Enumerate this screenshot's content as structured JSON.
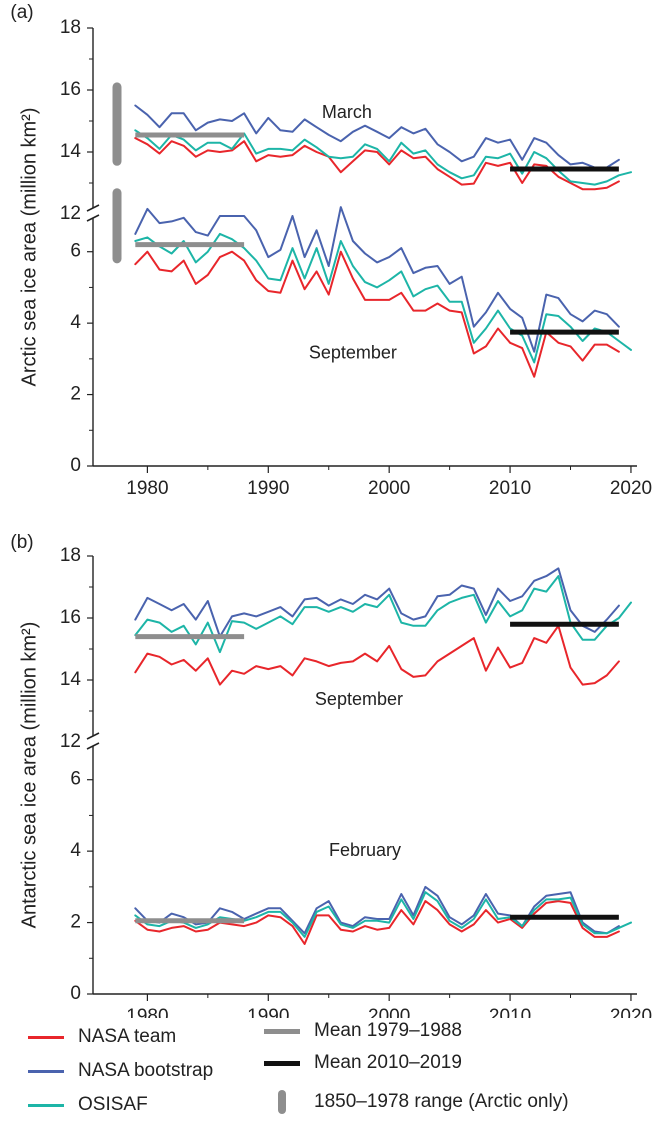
{
  "chart_data": [
    {
      "type": "line",
      "panel_label": "(a)",
      "ylabel": "Arctic sea ice area (million km²)",
      "x_ticks": [
        1980,
        1990,
        2000,
        2010,
        2020
      ],
      "y_ticks_upper": [
        12,
        14,
        16,
        18
      ],
      "y_ticks_lower": [
        0,
        2,
        4,
        6
      ],
      "broken_axis": true,
      "upper_ylim": [
        12,
        18
      ],
      "lower_ylim": [
        0,
        7
      ],
      "xlim": [
        1975.5,
        2020.5
      ],
      "x": [
        1979,
        1980,
        1981,
        1982,
        1983,
        1984,
        1985,
        1986,
        1987,
        1988,
        1989,
        1990,
        1991,
        1992,
        1993,
        1994,
        1995,
        1996,
        1997,
        1998,
        1999,
        2000,
        2001,
        2002,
        2003,
        2004,
        2005,
        2006,
        2007,
        2008,
        2009,
        2010,
        2011,
        2012,
        2013,
        2014,
        2015,
        2016,
        2017,
        2018,
        2019,
        2020
      ],
      "groups": [
        {
          "label": "March",
          "series": [
            {
              "name": "NASA team",
              "values": [
                14.45,
                14.25,
                13.95,
                14.35,
                14.2,
                13.85,
                14.05,
                14.0,
                14.05,
                14.35,
                13.7,
                13.9,
                13.85,
                13.9,
                14.2,
                14.0,
                13.85,
                13.35,
                13.7,
                14.05,
                14.0,
                13.6,
                14.05,
                13.8,
                13.85,
                13.45,
                13.2,
                12.95,
                12.98,
                13.65,
                13.55,
                13.65,
                13.0,
                13.6,
                13.55,
                13.2,
                13.0,
                12.8,
                12.8,
                12.85,
                13.05,
                null
              ]
            },
            {
              "name": "NASA bootstrap",
              "values": [
                15.5,
                15.2,
                14.8,
                15.25,
                15.25,
                14.7,
                14.95,
                15.05,
                15.0,
                15.25,
                14.6,
                15.1,
                14.7,
                14.65,
                15.05,
                14.8,
                14.55,
                14.35,
                14.65,
                14.85,
                14.65,
                14.45,
                14.8,
                14.6,
                14.75,
                14.25,
                14.0,
                13.7,
                13.85,
                14.45,
                14.3,
                14.4,
                13.75,
                14.45,
                14.3,
                13.9,
                13.6,
                13.65,
                13.5,
                13.5,
                13.75,
                null
              ]
            },
            {
              "name": "OSISAF",
              "values": [
                14.7,
                14.45,
                14.1,
                14.55,
                14.4,
                14.05,
                14.3,
                14.3,
                14.1,
                14.6,
                13.95,
                14.1,
                14.1,
                14.05,
                14.4,
                14.15,
                13.85,
                13.8,
                13.85,
                14.25,
                14.1,
                13.7,
                14.3,
                13.95,
                14.05,
                13.6,
                13.35,
                13.15,
                13.25,
                13.85,
                13.8,
                13.95,
                13.3,
                14.0,
                13.8,
                13.4,
                13.05,
                13.0,
                12.95,
                13.05,
                13.25,
                13.35
              ]
            }
          ],
          "mean_1979_1988": 14.55,
          "mean_2010_2019": 13.45,
          "historic_range_1850_1978": [
            13.7,
            16.1
          ]
        },
        {
          "label": "September",
          "series": [
            {
              "name": "NASA team",
              "values": [
                5.65,
                6.0,
                5.5,
                5.45,
                5.75,
                5.1,
                5.35,
                5.85,
                6.0,
                5.75,
                5.2,
                4.9,
                4.85,
                5.75,
                4.95,
                5.45,
                4.8,
                6.0,
                5.25,
                4.65,
                4.65,
                4.65,
                4.85,
                4.35,
                4.35,
                4.55,
                4.35,
                4.3,
                3.15,
                3.35,
                3.85,
                3.45,
                3.3,
                2.5,
                3.75,
                3.45,
                3.35,
                2.95,
                3.4,
                3.4,
                3.2,
                null
              ]
            },
            {
              "name": "NASA bootstrap",
              "values": [
                6.5,
                7.2,
                6.8,
                6.85,
                6.95,
                6.55,
                6.45,
                7.0,
                7.0,
                7.0,
                6.6,
                5.85,
                6.05,
                7.0,
                5.85,
                6.6,
                5.6,
                7.25,
                6.3,
                5.95,
                5.7,
                5.85,
                6.1,
                5.4,
                5.55,
                5.6,
                5.1,
                5.3,
                3.9,
                4.3,
                4.85,
                4.4,
                4.15,
                3.2,
                4.8,
                4.7,
                4.25,
                4.05,
                4.35,
                4.25,
                3.9,
                null
              ]
            },
            {
              "name": "OSISAF",
              "values": [
                6.3,
                6.4,
                6.15,
                5.95,
                6.3,
                5.7,
                6.0,
                6.5,
                6.35,
                6.1,
                5.75,
                5.25,
                5.2,
                6.1,
                5.25,
                6.1,
                5.1,
                6.3,
                5.6,
                5.15,
                5.0,
                5.2,
                5.45,
                4.75,
                4.95,
                5.05,
                4.6,
                4.6,
                3.45,
                3.85,
                4.35,
                3.85,
                3.65,
                2.9,
                4.25,
                4.2,
                3.9,
                3.5,
                3.85,
                3.75,
                3.5,
                3.25
              ]
            }
          ],
          "mean_1979_1988": 6.2,
          "mean_2010_2019": 3.75,
          "historic_range_1850_1978": [
            5.8,
            7.65
          ]
        }
      ]
    },
    {
      "type": "line",
      "panel_label": "(b)",
      "ylabel": "Antarctic sea ice area (million km²)",
      "x_ticks": [
        1980,
        1990,
        2000,
        2010,
        2020
      ],
      "y_ticks_upper": [
        12,
        14,
        16,
        18
      ],
      "y_ticks_lower": [
        0,
        2,
        4,
        6
      ],
      "broken_axis": true,
      "upper_ylim": [
        12,
        18
      ],
      "lower_ylim": [
        0,
        7
      ],
      "xlim": [
        1975.5,
        2020.5
      ],
      "x": [
        1979,
        1980,
        1981,
        1982,
        1983,
        1984,
        1985,
        1986,
        1987,
        1988,
        1989,
        1990,
        1991,
        1992,
        1993,
        1994,
        1995,
        1996,
        1997,
        1998,
        1999,
        2000,
        2001,
        2002,
        2003,
        2004,
        2005,
        2006,
        2007,
        2008,
        2009,
        2010,
        2011,
        2012,
        2013,
        2014,
        2015,
        2016,
        2017,
        2018,
        2019,
        2020
      ],
      "groups": [
        {
          "label": "September",
          "series": [
            {
              "name": "NASA team",
              "values": [
                14.25,
                14.85,
                14.75,
                14.5,
                14.65,
                14.3,
                14.7,
                13.85,
                14.3,
                14.2,
                14.45,
                14.35,
                14.45,
                14.15,
                14.7,
                14.6,
                14.45,
                14.55,
                14.6,
                14.85,
                14.6,
                15.1,
                14.35,
                14.1,
                14.15,
                14.6,
                14.85,
                15.1,
                15.35,
                14.3,
                15.05,
                14.4,
                14.55,
                15.35,
                15.2,
                15.75,
                14.4,
                13.85,
                13.9,
                14.15,
                14.6,
                null
              ]
            },
            {
              "name": "NASA bootstrap",
              "values": [
                15.95,
                16.65,
                16.45,
                16.25,
                16.45,
                15.95,
                16.55,
                15.4,
                16.05,
                16.15,
                16.05,
                16.2,
                16.35,
                16.05,
                16.6,
                16.65,
                16.4,
                16.6,
                16.45,
                16.75,
                16.6,
                16.95,
                16.15,
                15.95,
                16.05,
                16.7,
                16.75,
                17.05,
                16.95,
                16.1,
                16.95,
                16.55,
                16.7,
                17.2,
                17.35,
                17.6,
                16.25,
                15.75,
                15.55,
                15.95,
                16.4,
                null
              ]
            },
            {
              "name": "OSISAF",
              "values": [
                15.45,
                15.95,
                15.85,
                15.55,
                15.75,
                15.15,
                15.85,
                14.9,
                15.9,
                15.85,
                15.65,
                15.85,
                16.05,
                15.8,
                16.35,
                16.35,
                16.2,
                16.35,
                16.2,
                16.45,
                16.35,
                16.75,
                15.85,
                15.75,
                15.75,
                16.25,
                16.5,
                16.65,
                16.75,
                15.85,
                16.55,
                16.05,
                16.25,
                16.95,
                16.85,
                17.35,
                15.85,
                15.3,
                15.3,
                15.75,
                16.0,
                16.5
              ]
            }
          ],
          "mean_1979_1988": 15.4,
          "mean_2010_2019": 15.8
        },
        {
          "label": "February",
          "series": [
            {
              "name": "NASA team",
              "values": [
                2.05,
                1.8,
                1.75,
                1.85,
                1.9,
                1.75,
                1.8,
                2.0,
                1.95,
                1.9,
                2.0,
                2.2,
                2.15,
                1.9,
                1.4,
                2.2,
                2.2,
                1.8,
                1.75,
                1.9,
                1.8,
                1.85,
                2.35,
                1.95,
                2.6,
                2.35,
                1.95,
                1.75,
                1.95,
                2.35,
                2.0,
                2.1,
                1.85,
                2.25,
                2.55,
                2.6,
                2.55,
                1.85,
                1.6,
                1.6,
                1.75,
                null
              ]
            },
            {
              "name": "NASA bootstrap",
              "values": [
                2.4,
                2.05,
                2.0,
                2.25,
                2.15,
                1.95,
                2.0,
                2.4,
                2.3,
                2.1,
                2.25,
                2.4,
                2.4,
                2.05,
                1.7,
                2.4,
                2.6,
                2.0,
                1.9,
                2.15,
                2.1,
                2.1,
                2.8,
                2.2,
                3.0,
                2.75,
                2.15,
                1.95,
                2.2,
                2.8,
                2.25,
                2.2,
                1.9,
                2.45,
                2.75,
                2.8,
                2.85,
                2.0,
                1.75,
                1.7,
                1.9,
                null
              ]
            },
            {
              "name": "OSISAF",
              "values": [
                2.2,
                1.95,
                1.9,
                2.05,
                2.0,
                1.85,
                1.95,
                2.15,
                2.1,
                2.05,
                2.15,
                2.3,
                2.3,
                2.0,
                1.6,
                2.3,
                2.45,
                1.95,
                1.85,
                2.05,
                2.05,
                2.0,
                2.65,
                2.1,
                2.85,
                2.6,
                2.05,
                1.85,
                2.1,
                2.65,
                2.1,
                2.15,
                1.9,
                2.35,
                2.65,
                2.65,
                2.7,
                1.95,
                1.7,
                1.7,
                1.85,
                2.0
              ]
            }
          ],
          "mean_1979_1988": 2.05,
          "mean_2010_2019": 2.15
        }
      ]
    }
  ],
  "colors": {
    "NASA team": "#e8262b",
    "NASA bootstrap": "#4a63ae",
    "OSISAF": "#1db5a7",
    "mean_1979_1988": "#8e8e8e",
    "mean_2010_2019": "#111111",
    "historic_range": "#8e8e8e"
  },
  "legend": {
    "nasa_team": "NASA team",
    "nasa_bootstrap": "NASA bootstrap",
    "osisaf": "OSISAF",
    "mean_early": "Mean 1979–1988",
    "mean_late": "Mean 2010–2019",
    "range": "1850–1978 range (Arctic only)"
  }
}
